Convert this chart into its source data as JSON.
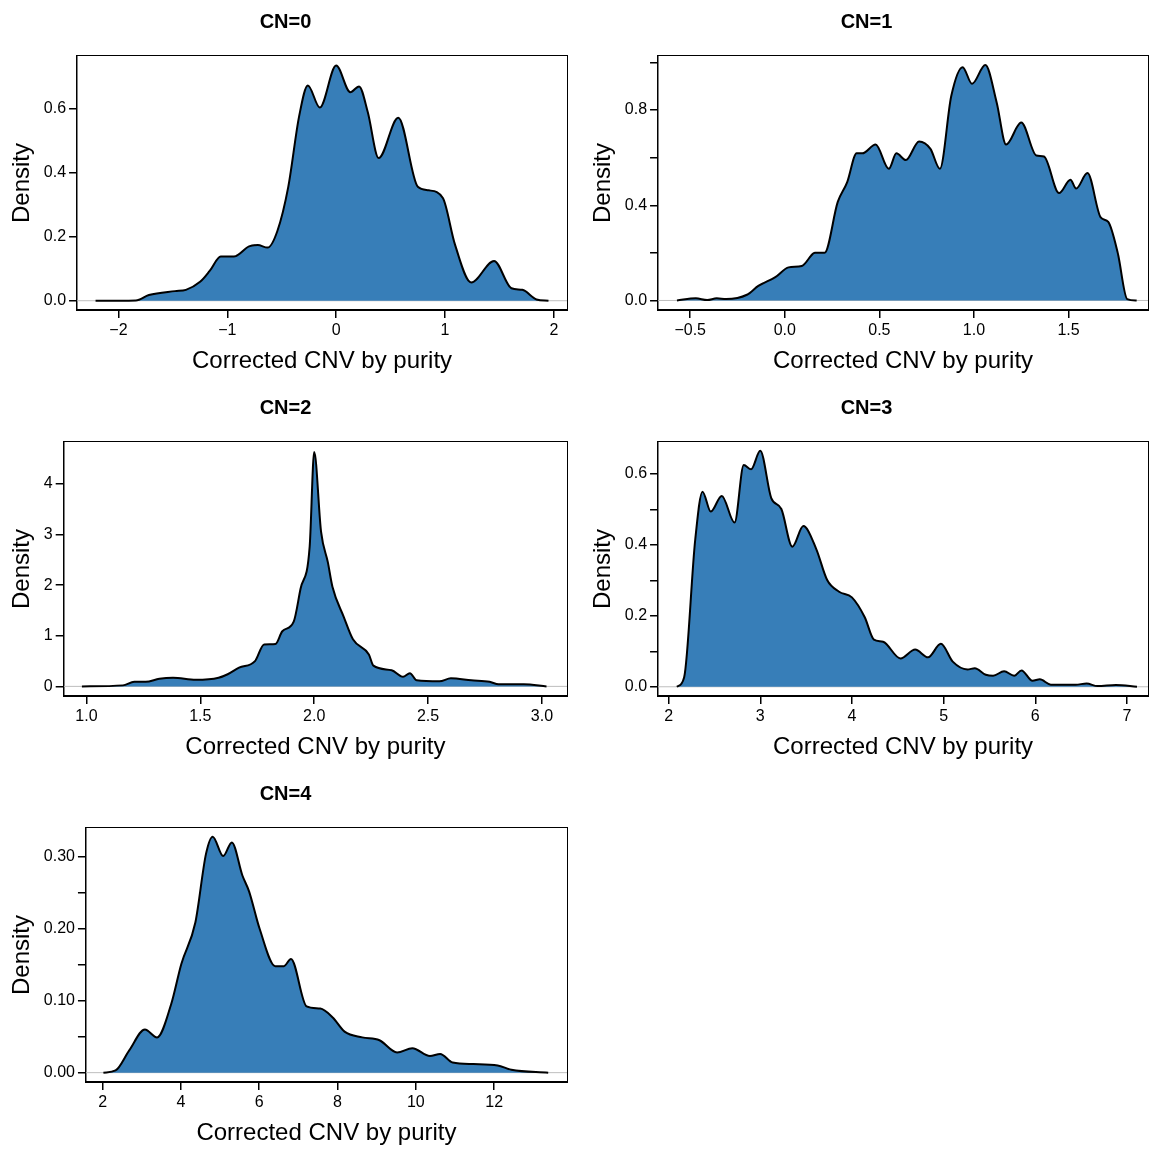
{
  "chart_data": [
    {
      "type": "area",
      "title": "CN=0",
      "xlabel": "Corrected CNV by purity",
      "ylabel": "Density",
      "grid": false,
      "legend": false,
      "xlim": [
        -2.38,
        2.12
      ],
      "ylim": [
        -0.029,
        0.765
      ],
      "xticks": [
        {
          "value": -2,
          "label": "−2"
        },
        {
          "value": -1,
          "label": "−1"
        },
        0,
        1,
        2
      ],
      "yticks": [
        {
          "value": 0,
          "label": "0.0"
        },
        0.2,
        0.4,
        0.6
      ],
      "ref_lines": [
        {
          "axis": "y",
          "value": 0,
          "color": "#bebebe"
        }
      ],
      "series": [
        {
          "color": "#377eb8",
          "x": [
            -2.21,
            -1.84,
            -1.72,
            -1.48,
            -1.38,
            -1.25,
            -1.16,
            -1.06,
            -0.94,
            -0.8,
            -0.72,
            -0.63,
            -0.54,
            -0.44,
            -0.34,
            -0.26,
            -0.15,
            0,
            0.13,
            0.21,
            0.29,
            0.39,
            0.57,
            0.75,
            0.85,
            0.98,
            1.09,
            1.24,
            1.45,
            1.61,
            1.71,
            1.84,
            1.95
          ],
          "values": [
            0,
            0.001,
            0.018,
            0.03,
            0.034,
            0.059,
            0.094,
            0.138,
            0.138,
            0.17,
            0.174,
            0.166,
            0.218,
            0.356,
            0.577,
            0.673,
            0.604,
            0.735,
            0.652,
            0.67,
            0.59,
            0.446,
            0.572,
            0.356,
            0.345,
            0.321,
            0.177,
            0.057,
            0.124,
            0.039,
            0.034,
            0.004,
            0
          ]
        }
      ]
    },
    {
      "type": "area",
      "title": "CN=1",
      "xlabel": "Corrected CNV by purity",
      "ylabel": "Density",
      "grid": false,
      "legend": false,
      "xlim": [
        -0.67,
        1.92
      ],
      "ylim": [
        -0.04,
        1.027
      ],
      "xticks": [
        {
          "value": -0.5,
          "label": "−0.5"
        },
        {
          "value": 0,
          "label": "0.0"
        },
        0.5,
        {
          "value": 1,
          "label": "1.0"
        },
        1.5
      ],
      "yticks": [
        {
          "value": 0,
          "label": "0.0"
        },
        {
          "value": 0.2,
          "label": null
        },
        0.4,
        {
          "value": 0.6,
          "label": null
        },
        0.8,
        {
          "value": 1,
          "label": null
        }
      ],
      "ref_lines": [
        {
          "axis": "y",
          "value": 0,
          "color": "#bebebe"
        }
      ],
      "series": [
        {
          "color": "#377eb8",
          "x": [
            -0.57,
            -0.47,
            -0.41,
            -0.36,
            -0.31,
            -0.2,
            -0.14,
            -0.05,
            0.02,
            0.09,
            0.16,
            0.21,
            0.28,
            0.33,
            0.38,
            0.41,
            0.48,
            0.55,
            0.59,
            0.64,
            0.71,
            0.77,
            0.82,
            0.88,
            0.94,
            0.99,
            1.06,
            1.12,
            1.17,
            1.25,
            1.33,
            1.37,
            1.45,
            1.51,
            1.54,
            1.6,
            1.67,
            1.71,
            1.76,
            1.81,
            1.86
          ],
          "values": [
            0,
            0.009,
            0.002,
            0.009,
            0.006,
            0.024,
            0.061,
            0.098,
            0.139,
            0.145,
            0.2,
            0.2,
            0.414,
            0.497,
            0.618,
            0.618,
            0.655,
            0.553,
            0.618,
            0.59,
            0.668,
            0.637,
            0.553,
            0.859,
            0.98,
            0.91,
            0.989,
            0.832,
            0.655,
            0.748,
            0.609,
            0.605,
            0.451,
            0.507,
            0.47,
            0.535,
            0.349,
            0.33,
            0.2,
            0.006,
            0
          ]
        }
      ]
    },
    {
      "type": "area",
      "title": "CN=2",
      "xlabel": "Corrected CNV by purity",
      "ylabel": "Density",
      "grid": false,
      "legend": false,
      "xlim": [
        0.9,
        3.11
      ],
      "ylim": [
        -0.19,
        4.83
      ],
      "xticks": [
        {
          "value": 1,
          "label": "1.0"
        },
        1.5,
        {
          "value": 2,
          "label": "2.0"
        },
        2.5,
        {
          "value": 3,
          "label": "3.0"
        }
      ],
      "yticks": [
        0,
        1,
        2,
        3,
        4
      ],
      "ref_lines": [
        {
          "axis": "y",
          "value": 0,
          "color": "#bebebe"
        }
      ],
      "series": [
        {
          "color": "#377eb8",
          "x": [
            0.98,
            1.16,
            1.21,
            1.26,
            1.32,
            1.38,
            1.48,
            1.58,
            1.62,
            1.67,
            1.74,
            1.78,
            1.83,
            1.86,
            1.91,
            1.94,
            1.98,
            2,
            2.03,
            2.06,
            2.08,
            2.13,
            2.17,
            2.24,
            2.26,
            2.34,
            2.39,
            2.42,
            2.45,
            2.55,
            2.6,
            2.69,
            2.77,
            2.81,
            2.92,
            3.02
          ],
          "values": [
            0,
            0.02,
            0.09,
            0.09,
            0.15,
            0.17,
            0.13,
            0.17,
            0.24,
            0.37,
            0.5,
            0.83,
            0.84,
            1.09,
            1.28,
            1.93,
            2.76,
            4.63,
            3.06,
            2.45,
            1.97,
            1.37,
            0.93,
            0.63,
            0.41,
            0.32,
            0.19,
            0.26,
            0.12,
            0.1,
            0.16,
            0.12,
            0.09,
            0.04,
            0.04,
            0
          ]
        }
      ]
    },
    {
      "type": "area",
      "title": "CN=3",
      "xlabel": "Corrected CNV by purity",
      "ylabel": "Density",
      "grid": false,
      "legend": false,
      "xlim": [
        1.885,
        7.23
      ],
      "ylim": [
        -0.026,
        0.69
      ],
      "xticks": [
        2,
        3,
        4,
        5,
        6,
        7
      ],
      "yticks": [
        {
          "value": 0,
          "label": "0.0"
        },
        {
          "value": 0.1,
          "label": null
        },
        0.2,
        {
          "value": 0.3,
          "label": null
        },
        0.4,
        {
          "value": 0.5,
          "label": null
        },
        0.6
      ],
      "ref_lines": [
        {
          "axis": "y",
          "value": 0,
          "color": "#bebebe"
        }
      ],
      "series": [
        {
          "color": "#377eb8",
          "x": [
            2.09,
            2.17,
            2.29,
            2.37,
            2.46,
            2.58,
            2.72,
            2.82,
            2.9,
            3,
            3.12,
            3.23,
            3.35,
            3.47,
            3.61,
            3.73,
            3.86,
            4,
            4.14,
            4.24,
            4.34,
            4.53,
            4.69,
            4.83,
            4.97,
            5.1,
            5.26,
            5.34,
            5.46,
            5.54,
            5.66,
            5.77,
            5.85,
            5.97,
            6.05,
            6.17,
            6.44,
            6.56,
            6.68,
            6.88,
            7.11
          ],
          "values": [
            0,
            0.027,
            0.413,
            0.55,
            0.494,
            0.538,
            0.463,
            0.625,
            0.613,
            0.665,
            0.532,
            0.501,
            0.395,
            0.453,
            0.389,
            0.301,
            0.268,
            0.252,
            0.196,
            0.133,
            0.127,
            0.08,
            0.105,
            0.083,
            0.121,
            0.071,
            0.049,
            0.052,
            0.034,
            0.031,
            0.044,
            0.031,
            0.046,
            0.017,
            0.021,
            0.006,
            0.006,
            0.009,
            0.002,
            0.005,
            0
          ]
        }
      ]
    },
    {
      "type": "area",
      "title": "CN=4",
      "xlabel": "Corrected CNV by purity",
      "ylabel": "Density",
      "grid": false,
      "legend": false,
      "xlim": [
        1.574,
        13.86
      ],
      "ylim": [
        -0.013,
        0.34
      ],
      "xticks": [
        2,
        4,
        6,
        8,
        10,
        12
      ],
      "yticks": [
        {
          "value": 0,
          "label": "0.00"
        },
        {
          "value": 0.05,
          "label": null
        },
        {
          "value": 0.1,
          "label": "0.10"
        },
        {
          "value": 0.15,
          "label": null
        },
        {
          "value": 0.2,
          "label": "0.20"
        },
        {
          "value": 0.25,
          "label": null
        },
        {
          "value": 0.3,
          "label": "0.30"
        }
      ],
      "ref_lines": [
        {
          "axis": "y",
          "value": 0,
          "color": "#bebebe"
        }
      ],
      "series": [
        {
          "color": "#377eb8",
          "x": [
            2.02,
            2.33,
            2.68,
            3.08,
            3.39,
            3.75,
            4.01,
            4.37,
            4.64,
            4.81,
            5.08,
            5.3,
            5.57,
            5.74,
            6.01,
            6.41,
            6.63,
            6.81,
            7.21,
            7.56,
            7.87,
            8.18,
            8.63,
            9.07,
            9.52,
            9.91,
            10.36,
            10.62,
            10.94,
            11.47,
            12.09,
            12.44,
            13.38
          ],
          "values": [
            0,
            0.003,
            0.031,
            0.06,
            0.049,
            0.095,
            0.151,
            0.209,
            0.304,
            0.328,
            0.301,
            0.32,
            0.274,
            0.252,
            0.2,
            0.148,
            0.148,
            0.158,
            0.092,
            0.089,
            0.077,
            0.057,
            0.049,
            0.045,
            0.028,
            0.034,
            0.023,
            0.026,
            0.014,
            0.012,
            0.01,
            0.004,
            0
          ]
        }
      ]
    }
  ]
}
